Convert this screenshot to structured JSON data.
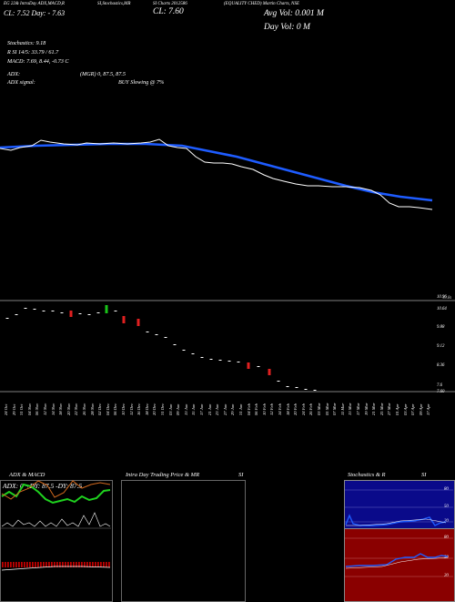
{
  "header": {
    "line1": "EG 22& IntraDay ADX,MACD,R",
    "line1b": "SI,Stochastics,MR",
    "line1c": "SI Charts 2012586",
    "line1d": "(EQUALITY CHED) Martin Charts, NSE",
    "line2_left": "CL: 7.52  Day: - 7.63",
    "close_label": "CL: 7.60",
    "avg_vol": "Avg Vol: 0.001  M",
    "day_vol": "Day Vol: 0   M"
  },
  "indicators": {
    "stochastics": "Stochastics: 9.18",
    "rsi_line": "R    SI 14/5: 33.79 / 61.7",
    "macd": "MACD: 7.69,  8.44,  -0.73  C",
    "adx": "ADX:",
    "mgr": "(MGR) 0,  87.5,  87.5",
    "adx_signal": "ADX  signal:",
    "buy": "BUY Slowing @ 7%"
  },
  "price_axis": [
    "10.96",
    "10.64",
    "9.88",
    "9.12",
    "8.36",
    "7.6",
    "7.60"
  ],
  "price_marker": "10.8s",
  "x_labels": [
    "24 Oct",
    "29 Oct",
    "31 Oct",
    "04 Nov",
    "06 Nov",
    "12 Nov",
    "14 Nov",
    "18 Nov",
    "20 Nov",
    "22 Nov",
    "26 Nov",
    "28 Nov",
    "02 Dec",
    "04 Dec",
    "06 Dec",
    "10 Dec",
    "12 Dec",
    "16 Dec",
    "18 Dec",
    "20 Dec",
    "24 Dec",
    "27 Dec",
    "31 Dec",
    "03 Jan",
    "07 Jan",
    "09 Jan",
    "13 Jan",
    "15 Jan",
    "17 Jan",
    "21 Jan",
    "23 Jan",
    "27 Jan",
    "29 Jan",
    "31 Jan",
    "04 Feb",
    "06 Feb",
    "10 Feb",
    "12 Feb",
    "14 Feb",
    "18 Feb",
    "20 Feb",
    "24 Feb",
    "26 Feb",
    "03 Mar",
    "05 Mar",
    "07 Mar",
    "11 Mar",
    "13 Mar",
    "17 Mar",
    "19 Mar",
    "21 Mar",
    "25 Mar",
    "27 Mar",
    "01 Apr",
    "03 Apr",
    "07 Apr",
    "09 Apr",
    "15 Apr",
    "17 Apr",
    "22 Apr",
    "24 Apr",
    "28 Apr",
    "30 Apr",
    "05 May",
    "07 May",
    "09 May",
    "13 May",
    "15 May",
    "19 May",
    "21 May",
    "23 May",
    "27 May",
    "29 May",
    "02 Jun",
    "04 Jun",
    "06 Jun",
    "10 Jun",
    "12 Jun",
    "16 Jun",
    "18 Jun",
    "20 Jun",
    "24 Jun",
    "26 Jun",
    "30 Jun",
    "02 Jul",
    "04 Jul",
    "08 Jul",
    "10 Jul",
    "14 Jul",
    "16 Jul",
    "18 Jul",
    "22 Jul",
    "24 Jul",
    "28 Jul",
    "30 Jul",
    "01 Aug",
    "05 Aug",
    "07 Aug",
    "11 Aug",
    "13 Aug",
    "18 Aug",
    "20 Aug",
    "22 Aug",
    "26 Aug",
    "28 Aug",
    "01 Sep",
    "03 Sep",
    "05 Sep",
    "09 Sep",
    "11 Sep",
    "15 Sep",
    "17 Sep",
    "19 Sep",
    "23 Sep",
    "25 Sep",
    "29 Sep",
    "01 Oct",
    "03 Oct",
    "07 Oct",
    "09 Oct",
    "13 Oct",
    "15 Oct",
    "17 Oct",
    "21 Oct",
    "23 Oct",
    "27 Oct",
    "29 Oct",
    "31 Oct",
    "04 Nov",
    "06 Nov",
    "10 Nov",
    "12 Nov",
    "14 Nov",
    "18 Nov",
    "20 Nov",
    "24 Nov",
    "26 Nov",
    "28 Nov",
    "02 Dec",
    "04 Dec",
    "08 Dec",
    "10 Dec",
    "12 Dec",
    "16 Dec",
    "18 Dec",
    "22 Dec",
    "24 Dec",
    "26 Dec",
    "30 Dec",
    "01 Jan",
    "05 Jan",
    "07 Jan",
    "09 Jan",
    "13 Jan",
    "15 Jan",
    "17 Jan",
    "21 Jan",
    "23 Jan",
    "27 Jan",
    "29 Jan",
    "31 Jan",
    "04 Feb",
    "06 Feb",
    "10 Feb",
    "12 Feb",
    "14 Feb",
    "18 Feb",
    "20 Feb",
    "24 Feb",
    "26 Feb",
    "28 Feb",
    "04 Mar",
    "06 Mar",
    "10 Mar",
    "12 Mar",
    "14 Mar",
    "18 Mar",
    "20 Mar",
    "24 Mar",
    "26 Mar",
    "28 Mar",
    "01 Apr",
    "03 Apr",
    "07 Apr",
    "09 Apr",
    "11 Apr",
    "15 Apr",
    "17 Apr",
    "21 Apr",
    "23 Apr",
    "25 Apr",
    "29 Apr",
    "01 May",
    "05 May",
    "07 May",
    "09 May",
    "13 May",
    "15 May",
    "19 May",
    "21 May",
    "23 May",
    "27 May",
    "29 May",
    "02 Jun",
    "04 Jun",
    "06 Jun",
    "10 Jun",
    "12 Jun",
    "16 Jun",
    "18 Jun",
    "20 Jun",
    "24 Jun",
    "26 Jun",
    "30 Jun",
    "02 Jul",
    "04 Jul",
    "08 Jul",
    "10 Jul",
    "14 Jul",
    "16 Jul",
    "18 Jul",
    "22 Jul",
    "24 Jul",
    "28 Jul",
    "30 Jul",
    "01 Aug",
    "05 Aug",
    "07 Aug",
    "11 Aug",
    "13 Aug",
    "18 Aug",
    "20 Aug",
    "22 Aug",
    "26 Aug",
    "28 Aug",
    "01 Sep",
    "03 Sep",
    "05 Sep",
    "09 Sep",
    "11 Sep",
    "15 Sep",
    "17 Sep",
    "19 Sep",
    "23 Sep",
    "25 Sep",
    "29 Sep",
    "01 Oct",
    "03 Oct",
    "07 Oct",
    "09 Oct",
    "13 Oct",
    "15 Oct",
    "17 Oct",
    "21 Oct",
    "23 Oct",
    "27 Oct",
    "29 Oct",
    "31 Oct"
  ],
  "x_labels_shown": [
    "24 Oct",
    "29 Oct",
    "31 Oct",
    "04 Nov",
    "06 Nov",
    "12 Nov",
    "14 Nov",
    "18 Nov",
    "20 Nov",
    "22 Nov",
    "26 Nov",
    "28 Nov",
    "02 Dec",
    "04 Dec",
    "06 Dec",
    "10 Dec",
    "12 Dec",
    "16 Dec",
    "18 Dec",
    "20 Dec",
    "31 Dec",
    "03 Jan",
    "09 Jan",
    "13 Jan",
    "15 Jan",
    "17 Jan",
    "21 Jan",
    "23 Jan",
    "27 Jan",
    "29 Jan",
    "31 Jan",
    "04 Feb",
    "06 Feb",
    "10 Feb",
    "12 Feb",
    "14 Feb",
    "18 Feb",
    "20 Feb",
    "24 Feb",
    "26 Feb",
    "03 Mar",
    "05 Mar",
    "07 Mar",
    "11 Mar",
    "13 Mar",
    "17 Mar",
    "19 Mar",
    "21 Mar",
    "25 Mar",
    "27 Mar",
    "01 Apr",
    "03 Apr",
    "07 Apr",
    "09 Apr",
    "17 Apr"
  ],
  "panels": {
    "adx_macd": {
      "title": "ADX  & MACD",
      "readout": "ADX: 0   +DY: 87.5  -DY: 87.5"
    },
    "intraday": {
      "title": "Intra  Day Trading Price  & MR",
      "title_si": "SI"
    },
    "stoch": {
      "title": "Stochastics & R",
      "title_si": "SI",
      "axis_top": [
        "80",
        "50",
        "20"
      ],
      "axis_bottom": [
        "80",
        "50",
        "20"
      ]
    }
  },
  "colors": {
    "sma": "#1e5cff",
    "price": "#ffffff",
    "down": "#e02020",
    "up": "#19c219",
    "stoch_bg": "#0a0a8a",
    "rsi_bg": "#8a0000",
    "macd_bar": "#c00000"
  }
}
